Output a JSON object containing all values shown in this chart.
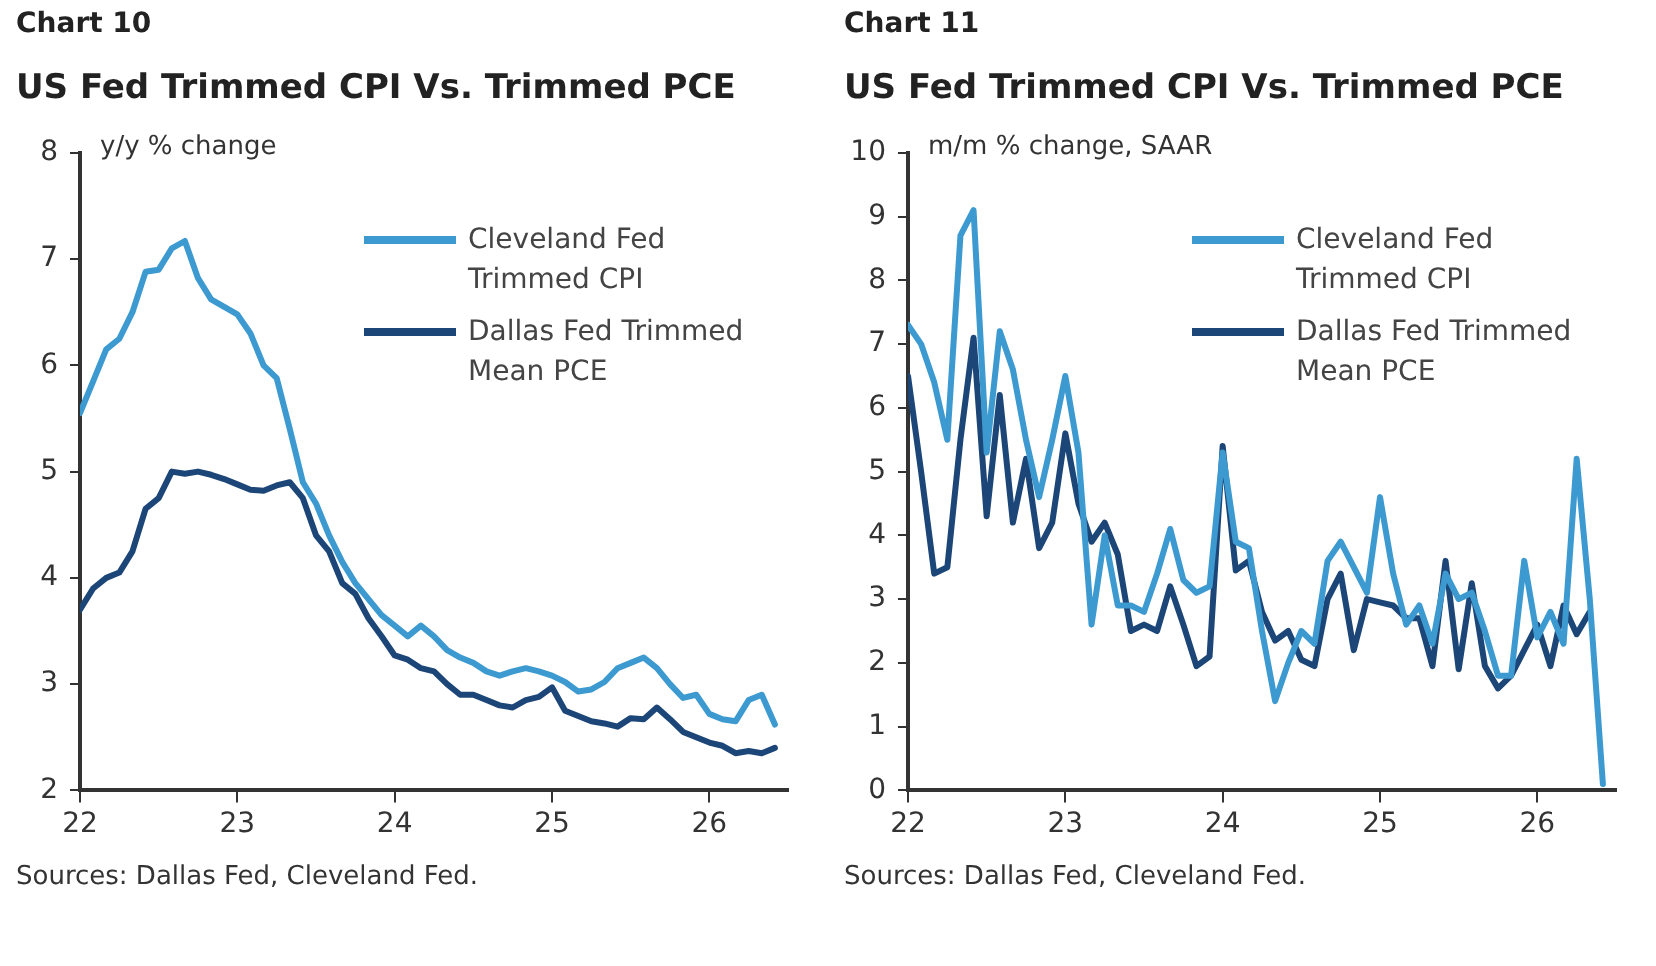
{
  "chart_data": [
    {
      "type": "line",
      "subtitle": "Chart 10",
      "title": "US Fed Trimmed CPI Vs. Trimmed PCE",
      "ylabel": "y/y % change",
      "x": [
        "2022-01",
        "2022-02",
        "2022-03",
        "2022-04",
        "2022-05",
        "2022-06",
        "2022-07",
        "2022-08",
        "2022-09",
        "2022-10",
        "2022-11",
        "2022-12",
        "2023-01",
        "2023-02",
        "2023-03",
        "2023-04",
        "2023-05",
        "2023-06",
        "2023-07",
        "2023-08",
        "2023-09",
        "2023-10",
        "2023-11",
        "2023-12",
        "2024-01",
        "2024-02",
        "2024-03",
        "2024-04",
        "2024-05",
        "2024-06",
        "2024-07",
        "2024-08",
        "2024-09",
        "2024-10",
        "2024-11",
        "2024-12",
        "2025-01",
        "2025-02",
        "2025-03",
        "2025-04",
        "2025-05",
        "2025-06",
        "2025-07",
        "2025-08",
        "2025-09",
        "2025-10",
        "2025-11",
        "2025-12",
        "2026-01",
        "2026-02",
        "2026-03",
        "2026-04",
        "2026-05",
        "2026-06"
      ],
      "series": [
        {
          "name": "Cleveland Fed Trimmed CPI",
          "color": "#3d9ad1",
          "values": [
            5.55,
            5.85,
            6.15,
            6.25,
            6.5,
            6.88,
            6.9,
            7.1,
            7.17,
            6.82,
            6.62,
            6.55,
            6.48,
            6.3,
            6.0,
            5.88,
            5.4,
            4.9,
            4.7,
            4.4,
            4.15,
            3.95,
            3.8,
            3.65,
            3.55,
            3.45,
            3.55,
            3.45,
            3.32,
            3.25,
            3.2,
            3.12,
            3.08,
            3.12,
            3.15,
            3.12,
            3.08,
            3.02,
            2.93,
            2.95,
            3.02,
            3.15,
            3.2,
            3.25,
            3.15,
            3.0,
            2.87,
            2.9,
            2.72,
            2.67,
            2.65,
            2.85,
            2.9,
            2.62
          ]
        },
        {
          "name": "Dallas Fed Trimmed Mean PCE",
          "color": "#1c4677",
          "values": [
            3.7,
            3.9,
            4.0,
            4.05,
            4.25,
            4.65,
            4.75,
            5.0,
            4.98,
            5.0,
            4.97,
            4.93,
            4.88,
            4.83,
            4.82,
            4.87,
            4.9,
            4.75,
            4.4,
            4.25,
            3.95,
            3.85,
            3.62,
            3.45,
            3.27,
            3.23,
            3.15,
            3.12,
            3.0,
            2.9,
            2.9,
            2.85,
            2.8,
            2.78,
            2.85,
            2.88,
            2.97,
            2.75,
            2.7,
            2.65,
            2.63,
            2.6,
            2.68,
            2.67,
            2.78,
            2.67,
            2.55,
            2.5,
            2.45,
            2.42,
            2.35,
            2.37,
            2.35,
            2.4
          ]
        }
      ],
      "xlim": [
        "2022-01",
        "2026-07"
      ],
      "xticks": [
        {
          "value": "2022-01",
          "label": "22"
        },
        {
          "value": "2023-01",
          "label": "23"
        },
        {
          "value": "2024-01",
          "label": "24"
        },
        {
          "value": "2025-01",
          "label": "25"
        },
        {
          "value": "2026-01",
          "label": "26"
        }
      ],
      "ylim": [
        2,
        8
      ],
      "yticks": [
        2,
        3,
        4,
        5,
        6,
        7,
        8
      ],
      "grid": false,
      "legend": "top right",
      "marker": "none",
      "line_style": "solid",
      "annotations": [
        "Sources: Dallas Fed, Cleveland  Fed."
      ]
    },
    {
      "type": "line",
      "subtitle": "Chart 11",
      "title": "US Fed Trimmed CPI Vs. Trimmed PCE",
      "ylabel": "m/m % change, SAAR",
      "x": [
        "2022-01",
        "2022-02",
        "2022-03",
        "2022-04",
        "2022-05",
        "2022-06",
        "2022-07",
        "2022-08",
        "2022-09",
        "2022-10",
        "2022-11",
        "2022-12",
        "2023-01",
        "2023-02",
        "2023-03",
        "2023-04",
        "2023-05",
        "2023-06",
        "2023-07",
        "2023-08",
        "2023-09",
        "2023-10",
        "2023-11",
        "2023-12",
        "2024-01",
        "2024-02",
        "2024-03",
        "2024-04",
        "2024-05",
        "2024-06",
        "2024-07",
        "2024-08",
        "2024-09",
        "2024-10",
        "2024-11",
        "2024-12",
        "2025-01",
        "2025-02",
        "2025-03",
        "2025-04",
        "2025-05",
        "2025-06",
        "2025-07",
        "2025-08",
        "2025-09",
        "2025-10",
        "2025-11",
        "2025-12",
        "2026-01",
        "2026-02",
        "2026-03",
        "2026-04",
        "2026-05",
        "2026-06"
      ],
      "series": [
        {
          "name": "Cleveland Fed Trimmed CPI",
          "color": "#3d9ad1",
          "values": [
            7.3,
            7.0,
            6.4,
            5.5,
            8.7,
            9.1,
            5.3,
            7.2,
            6.6,
            5.5,
            4.6,
            5.5,
            6.5,
            5.3,
            2.6,
            4.0,
            2.9,
            2.9,
            2.8,
            3.4,
            4.1,
            3.3,
            3.1,
            3.2,
            5.3,
            3.9,
            3.8,
            2.5,
            1.4,
            2.0,
            2.5,
            2.3,
            3.6,
            3.9,
            3.5,
            3.1,
            4.6,
            3.4,
            2.6,
            2.9,
            2.3,
            3.4,
            3.0,
            3.1,
            2.5,
            1.8,
            1.8,
            3.6,
            2.4,
            2.8,
            2.3,
            5.2,
            3.0,
            0.1
          ]
        },
        {
          "name": "Dallas Fed Trimmed Mean PCE",
          "color": "#1c4677",
          "values": [
            6.5,
            5.0,
            3.4,
            3.5,
            5.5,
            7.1,
            4.3,
            6.2,
            4.2,
            5.2,
            3.8,
            4.2,
            5.6,
            4.5,
            3.9,
            4.2,
            3.7,
            2.5,
            2.6,
            2.5,
            3.2,
            2.6,
            1.95,
            2.1,
            5.4,
            3.45,
            3.6,
            2.8,
            2.35,
            2.5,
            2.05,
            1.95,
            3.0,
            3.4,
            2.2,
            3.0,
            2.95,
            2.9,
            2.7,
            2.7,
            1.95,
            3.6,
            1.9,
            3.25,
            1.95,
            1.6,
            1.8,
            2.2,
            2.6,
            1.95,
            2.9,
            2.45,
            2.8,
            null
          ]
        }
      ],
      "xlim": [
        "2022-01",
        "2026-07"
      ],
      "xticks": [
        {
          "value": "2022-01",
          "label": "22"
        },
        {
          "value": "2023-01",
          "label": "23"
        },
        {
          "value": "2024-01",
          "label": "24"
        },
        {
          "value": "2025-01",
          "label": "25"
        },
        {
          "value": "2026-01",
          "label": "26"
        }
      ],
      "ylim": [
        0,
        10
      ],
      "yticks": [
        0,
        1,
        2,
        3,
        4,
        5,
        6,
        7,
        8,
        9,
        10
      ],
      "grid": false,
      "legend": "top right",
      "marker": "none",
      "line_style": "solid",
      "annotations": [
        "Sources: Dallas Fed, Cleveland  Fed."
      ]
    }
  ]
}
